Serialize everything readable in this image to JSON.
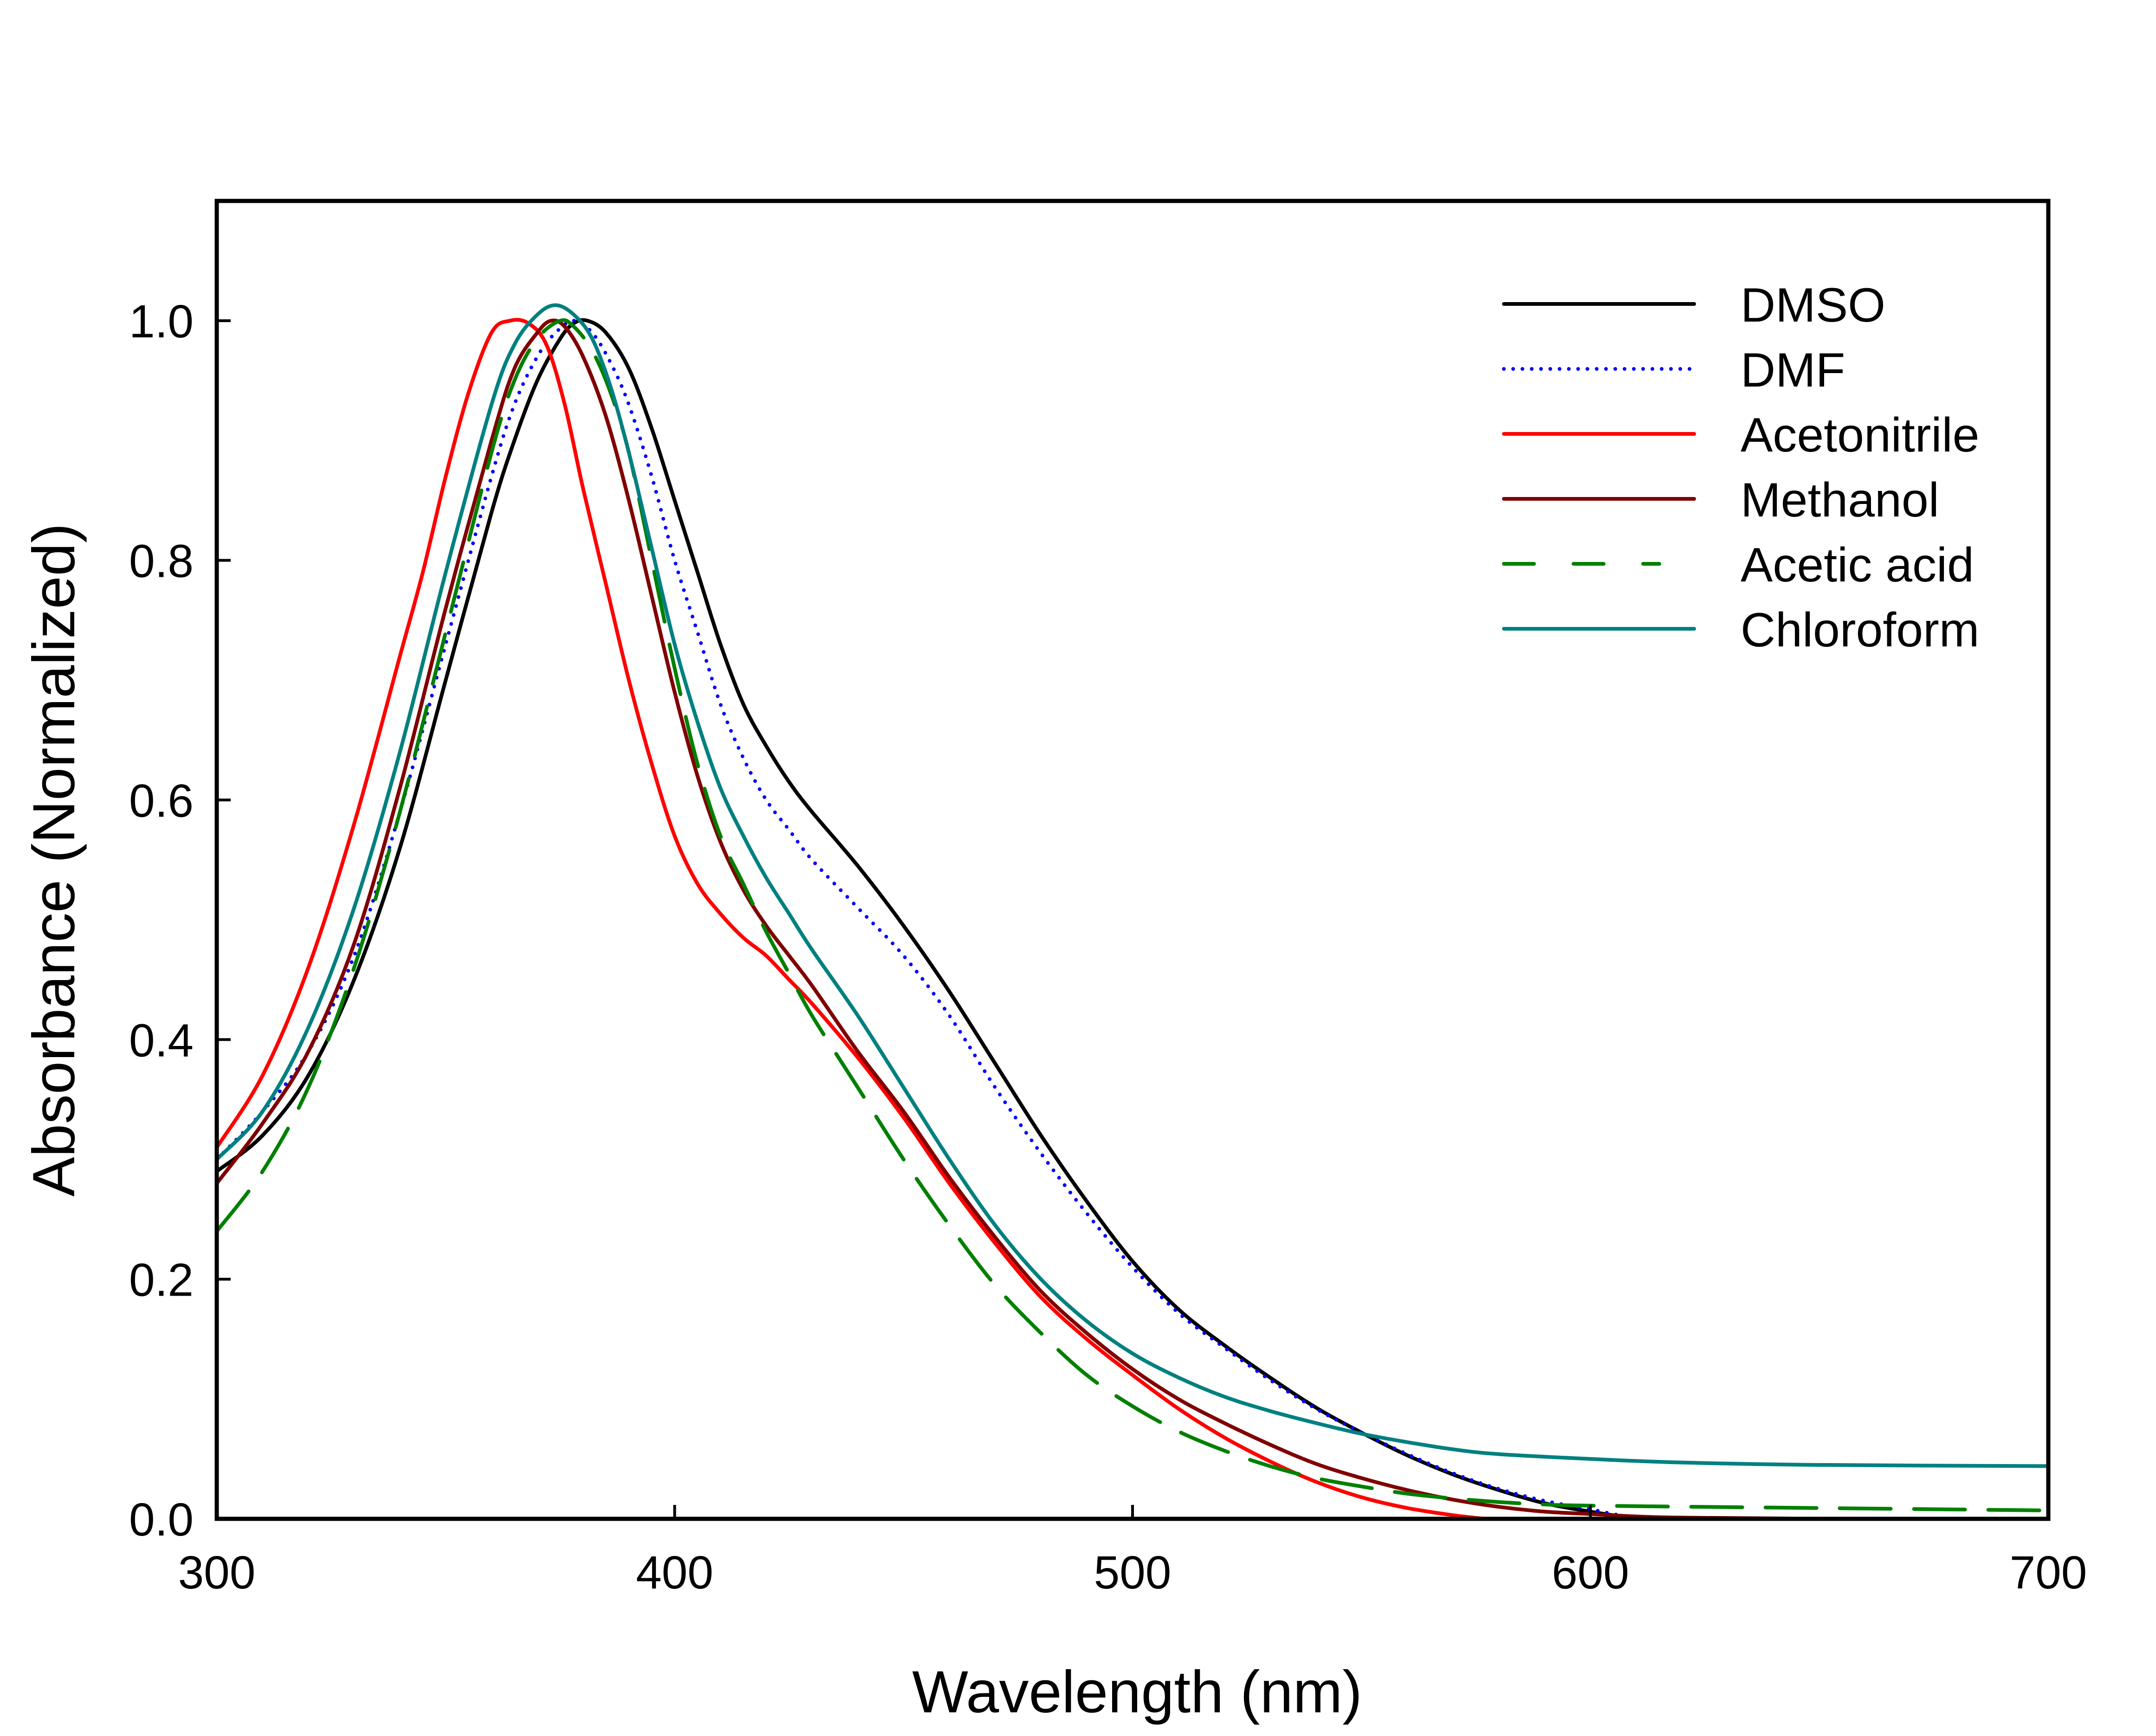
{
  "chart_data": {
    "type": "line",
    "title": "",
    "xlabel": "Wavelength (nm)",
    "ylabel": "Absorbance (Normalized)",
    "xlim": [
      300,
      700
    ],
    "ylim": [
      0,
      1.1
    ],
    "xticks": [
      300,
      400,
      500,
      600,
      700
    ],
    "xtick_labels": [
      "300",
      "400",
      "500",
      "600",
      "700"
    ],
    "yticks": [
      0.0,
      0.2,
      0.4,
      0.6,
      0.8,
      1.0
    ],
    "ytick_labels": [
      "0.0",
      "0.2",
      "0.4",
      "0.6",
      "0.8",
      "1.0"
    ],
    "grid": false,
    "legend_position": "top-right",
    "series": [
      {
        "name": "DMSO",
        "color": "#000000",
        "style": "solid",
        "x": [
          300,
          310,
          320,
          330,
          340,
          350,
          360,
          365,
          370,
          375,
          378,
          381,
          385,
          390,
          395,
          400,
          405,
          410,
          415,
          420,
          425,
          430,
          440,
          450,
          460,
          470,
          480,
          490,
          500,
          510,
          520,
          530,
          540,
          550,
          560,
          570,
          580,
          590,
          600,
          605,
          610,
          620,
          650,
          700
        ],
        "y": [
          0.29,
          0.32,
          0.37,
          0.45,
          0.56,
          0.7,
          0.84,
          0.9,
          0.95,
          0.985,
          0.998,
          1.0,
          0.99,
          0.96,
          0.91,
          0.85,
          0.79,
          0.73,
          0.68,
          0.645,
          0.615,
          0.59,
          0.545,
          0.495,
          0.44,
          0.38,
          0.32,
          0.265,
          0.215,
          0.175,
          0.145,
          0.118,
          0.093,
          0.072,
          0.053,
          0.037,
          0.024,
          0.013,
          0.006,
          0.003,
          0.001,
          0.0,
          0.0,
          0.0
        ]
      },
      {
        "name": "DMF",
        "color": "#0000ff",
        "style": "dotted",
        "x": [
          300,
          310,
          320,
          330,
          340,
          350,
          360,
          365,
          370,
          374,
          378,
          382,
          386,
          390,
          395,
          400,
          405,
          410,
          415,
          420,
          425,
          430,
          440,
          450,
          460,
          470,
          480,
          490,
          500,
          510,
          520,
          530,
          540,
          550,
          560,
          570,
          580,
          590,
          600,
          605,
          610,
          620,
          650,
          700
        ],
        "y": [
          0.3,
          0.34,
          0.39,
          0.47,
          0.59,
          0.73,
          0.87,
          0.93,
          0.97,
          0.99,
          1.0,
          0.99,
          0.965,
          0.93,
          0.87,
          0.8,
          0.74,
          0.68,
          0.635,
          0.6,
          0.575,
          0.55,
          0.51,
          0.47,
          0.42,
          0.36,
          0.305,
          0.255,
          0.21,
          0.172,
          0.143,
          0.116,
          0.092,
          0.072,
          0.054,
          0.038,
          0.025,
          0.015,
          0.008,
          0.004,
          0.001,
          0.0,
          0.0,
          0.0
        ]
      },
      {
        "name": "Acetonitrile",
        "color": "#ff0000",
        "style": "solid",
        "x": [
          300,
          310,
          320,
          330,
          340,
          345,
          350,
          355,
          360,
          364,
          368,
          372,
          376,
          380,
          385,
          390,
          395,
          400,
          405,
          410,
          415,
          420,
          425,
          430,
          440,
          450,
          460,
          470,
          480,
          490,
          500,
          510,
          520,
          530,
          540,
          550,
          560,
          570,
          577
        ],
        "y": [
          0.31,
          0.37,
          0.46,
          0.58,
          0.72,
          0.79,
          0.87,
          0.94,
          0.99,
          1.0,
          0.998,
          0.98,
          0.93,
          0.86,
          0.78,
          0.7,
          0.63,
          0.57,
          0.53,
          0.505,
          0.485,
          0.47,
          0.45,
          0.43,
          0.385,
          0.335,
          0.28,
          0.23,
          0.185,
          0.15,
          0.12,
          0.092,
          0.068,
          0.048,
          0.031,
          0.018,
          0.009,
          0.003,
          0.0
        ]
      },
      {
        "name": "Methanol",
        "color": "#800000",
        "style": "solid",
        "x": [
          300,
          310,
          320,
          330,
          340,
          350,
          360,
          365,
          370,
          373,
          376,
          380,
          385,
          390,
          395,
          400,
          405,
          410,
          415,
          420,
          425,
          430,
          440,
          450,
          460,
          470,
          480,
          490,
          500,
          510,
          520,
          530,
          540,
          550,
          560,
          570,
          580,
          590,
          600,
          610,
          620,
          650,
          700
        ],
        "y": [
          0.28,
          0.33,
          0.39,
          0.48,
          0.61,
          0.76,
          0.9,
          0.96,
          0.99,
          1.0,
          0.995,
          0.97,
          0.92,
          0.85,
          0.77,
          0.69,
          0.62,
          0.565,
          0.525,
          0.495,
          0.47,
          0.445,
          0.39,
          0.34,
          0.285,
          0.235,
          0.19,
          0.155,
          0.125,
          0.1,
          0.08,
          0.062,
          0.046,
          0.034,
          0.024,
          0.016,
          0.01,
          0.006,
          0.004,
          0.002,
          0.001,
          0.0,
          0.0
        ]
      },
      {
        "name": "Acetic acid",
        "color": "#008000",
        "style": "dashed",
        "x": [
          300,
          310,
          320,
          330,
          340,
          350,
          360,
          365,
          370,
          375,
          378,
          382,
          386,
          390,
          395,
          400,
          405,
          410,
          415,
          420,
          425,
          430,
          440,
          450,
          460,
          470,
          480,
          490,
          500,
          510,
          520,
          530,
          540,
          550,
          560,
          570,
          580,
          590,
          600,
          650,
          700
        ],
        "y": [
          0.24,
          0.29,
          0.36,
          0.46,
          0.59,
          0.74,
          0.89,
          0.95,
          0.985,
          1.0,
          0.995,
          0.975,
          0.94,
          0.89,
          0.8,
          0.71,
          0.63,
          0.57,
          0.53,
          0.49,
          0.455,
          0.42,
          0.36,
          0.3,
          0.245,
          0.195,
          0.155,
          0.12,
          0.094,
          0.073,
          0.057,
          0.044,
          0.034,
          0.027,
          0.021,
          0.017,
          0.014,
          0.012,
          0.011,
          0.009,
          0.007
        ]
      },
      {
        "name": "Chloroform",
        "color": "#008080",
        "style": "solid",
        "x": [
          300,
          310,
          320,
          330,
          340,
          350,
          360,
          365,
          370,
          374,
          378,
          382,
          386,
          390,
          395,
          400,
          405,
          410,
          415,
          420,
          425,
          430,
          440,
          450,
          460,
          470,
          480,
          490,
          500,
          510,
          520,
          530,
          540,
          550,
          560,
          570,
          580,
          600,
          620,
          650,
          700
        ],
        "y": [
          0.3,
          0.34,
          0.41,
          0.51,
          0.64,
          0.79,
          0.93,
          0.98,
          1.005,
          1.013,
          1.005,
          0.985,
          0.945,
          0.89,
          0.81,
          0.73,
          0.665,
          0.61,
          0.57,
          0.535,
          0.505,
          0.475,
          0.42,
          0.36,
          0.3,
          0.245,
          0.2,
          0.165,
          0.138,
          0.118,
          0.102,
          0.09,
          0.08,
          0.071,
          0.064,
          0.058,
          0.054,
          0.05,
          0.047,
          0.045,
          0.044
        ]
      }
    ]
  }
}
